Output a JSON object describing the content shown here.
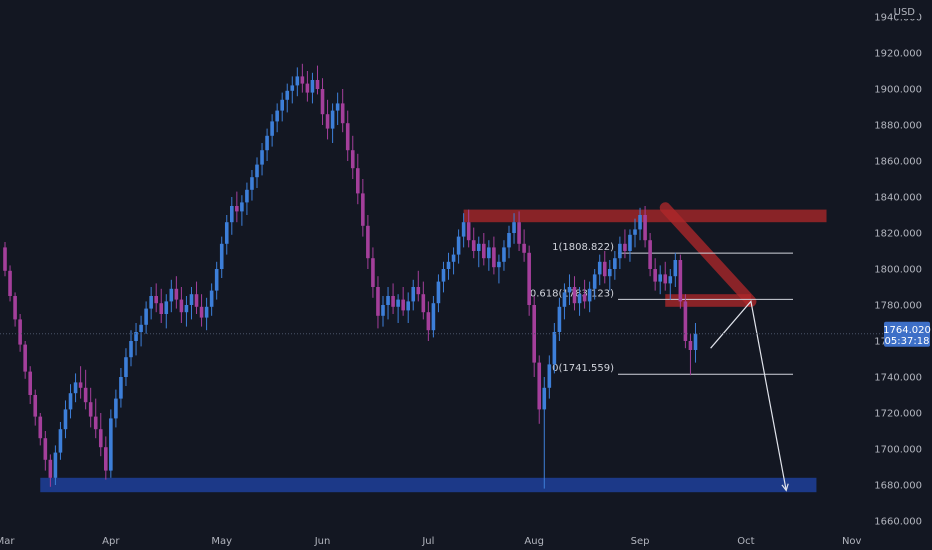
{
  "chart_data": {
    "type": "candlestick",
    "currency": "USD",
    "y_axis": {
      "ylim": [
        1655,
        1945
      ],
      "ticks": [
        1660,
        1680,
        1700,
        1720,
        1740,
        1760,
        1780,
        1800,
        1820,
        1840,
        1860,
        1880,
        1900,
        1920
      ],
      "tick_labels": [
        "1660.000",
        "1680.000",
        "1700.000",
        "1720.000",
        "1740.000",
        "1760.000",
        "1780.000",
        "1800.000",
        "1820.000",
        "1840.000",
        "1860.000",
        "1880.000",
        "1900.000",
        "1920.000"
      ],
      "top_partial_label": "1940.000"
    },
    "x_axis": {
      "labels": [
        "Mar",
        "Apr",
        "May",
        "Jun",
        "Jul",
        "Aug",
        "Sep",
        "Oct",
        "Nov"
      ],
      "label_bar_index": [
        0,
        21,
        43,
        63,
        84,
        105,
        126,
        147,
        168
      ],
      "total_bars": 175
    },
    "last_price": {
      "price": "1764.020",
      "countdown": "05:37:18",
      "value": 1764.02
    },
    "colors": {
      "background": "#131722",
      "bull": "#3d7fd9",
      "bear": "#a43f9b",
      "grid_text": "#b2b5be",
      "resistance_zone": "#b2282a",
      "support_zone": "#1f3f9a",
      "fib_line": "#d1d4dc",
      "price_tag": "#3d6fc7"
    },
    "fibonacci": [
      {
        "label": "1(1808.822)",
        "price": 1808.822
      },
      {
        "label": "0.618(1783.123)",
        "price": 1783.123
      },
      {
        "label": "0(1741.559)",
        "price": 1741.559
      }
    ],
    "zones": [
      {
        "name": "resistance",
        "from_bar": 91,
        "to_bar": 163,
        "low": 1826,
        "high": 1833
      },
      {
        "name": "retest",
        "from_bar": 131,
        "to_bar": 148,
        "low": 1779,
        "high": 1786
      },
      {
        "name": "support",
        "from_bar": 7,
        "to_bar": 161,
        "low": 1676,
        "high": 1684
      }
    ],
    "trendline": {
      "from": [
        131,
        1834
      ],
      "to": [
        148,
        1782
      ]
    },
    "projection": [
      [
        140,
        1756
      ],
      [
        148,
        1782
      ],
      [
        155,
        1677
      ]
    ],
    "candles": [
      [
        1812,
        1815,
        1796,
        1799
      ],
      [
        1799,
        1802,
        1782,
        1785
      ],
      [
        1785,
        1787,
        1768,
        1772
      ],
      [
        1772,
        1775,
        1754,
        1758
      ],
      [
        1758,
        1760,
        1739,
        1743
      ],
      [
        1743,
        1746,
        1725,
        1730
      ],
      [
        1730,
        1733,
        1713,
        1718
      ],
      [
        1718,
        1720,
        1702,
        1706
      ],
      [
        1706,
        1710,
        1688,
        1694
      ],
      [
        1694,
        1697,
        1679,
        1684
      ],
      [
        1684,
        1702,
        1680,
        1698
      ],
      [
        1698,
        1715,
        1694,
        1711
      ],
      [
        1711,
        1727,
        1706,
        1722
      ],
      [
        1722,
        1736,
        1717,
        1731
      ],
      [
        1731,
        1742,
        1726,
        1737
      ],
      [
        1737,
        1746,
        1728,
        1734
      ],
      [
        1734,
        1744,
        1722,
        1726
      ],
      [
        1726,
        1734,
        1712,
        1718
      ],
      [
        1718,
        1728,
        1706,
        1711
      ],
      [
        1711,
        1720,
        1696,
        1701
      ],
      [
        1701,
        1707,
        1683,
        1688
      ],
      [
        1688,
        1722,
        1684,
        1717
      ],
      [
        1717,
        1733,
        1712,
        1728
      ],
      [
        1728,
        1745,
        1723,
        1740
      ],
      [
        1740,
        1756,
        1735,
        1751
      ],
      [
        1751,
        1766,
        1746,
        1760
      ],
      [
        1760,
        1770,
        1752,
        1765
      ],
      [
        1765,
        1774,
        1757,
        1769
      ],
      [
        1769,
        1782,
        1764,
        1778
      ],
      [
        1778,
        1790,
        1772,
        1785
      ],
      [
        1785,
        1792,
        1776,
        1781
      ],
      [
        1781,
        1789,
        1770,
        1775
      ],
      [
        1775,
        1786,
        1767,
        1782
      ],
      [
        1782,
        1794,
        1776,
        1789
      ],
      [
        1789,
        1796,
        1778,
        1783
      ],
      [
        1783,
        1790,
        1770,
        1776
      ],
      [
        1776,
        1785,
        1768,
        1780
      ],
      [
        1780,
        1790,
        1772,
        1786
      ],
      [
        1786,
        1793,
        1775,
        1779
      ],
      [
        1779,
        1786,
        1768,
        1773
      ],
      [
        1773,
        1784,
        1766,
        1779
      ],
      [
        1779,
        1792,
        1774,
        1788
      ],
      [
        1788,
        1804,
        1783,
        1800
      ],
      [
        1800,
        1818,
        1795,
        1814
      ],
      [
        1814,
        1830,
        1808,
        1826
      ],
      [
        1826,
        1840,
        1819,
        1835
      ],
      [
        1835,
        1843,
        1826,
        1832
      ],
      [
        1832,
        1841,
        1824,
        1837
      ],
      [
        1837,
        1848,
        1830,
        1844
      ],
      [
        1844,
        1855,
        1838,
        1851
      ],
      [
        1851,
        1862,
        1845,
        1858
      ],
      [
        1858,
        1870,
        1852,
        1866
      ],
      [
        1866,
        1878,
        1860,
        1874
      ],
      [
        1874,
        1886,
        1868,
        1882
      ],
      [
        1882,
        1892,
        1876,
        1888
      ],
      [
        1888,
        1898,
        1882,
        1894
      ],
      [
        1894,
        1903,
        1887,
        1899
      ],
      [
        1899,
        1907,
        1892,
        1902
      ],
      [
        1902,
        1912,
        1896,
        1907
      ],
      [
        1907,
        1914,
        1898,
        1903
      ],
      [
        1903,
        1910,
        1893,
        1898
      ],
      [
        1898,
        1909,
        1892,
        1905
      ],
      [
        1905,
        1913,
        1897,
        1900
      ],
      [
        1900,
        1906,
        1880,
        1886
      ],
      [
        1886,
        1894,
        1872,
        1878
      ],
      [
        1878,
        1892,
        1870,
        1888
      ],
      [
        1888,
        1898,
        1880,
        1892
      ],
      [
        1892,
        1900,
        1876,
        1881
      ],
      [
        1881,
        1888,
        1860,
        1866
      ],
      [
        1866,
        1874,
        1850,
        1856
      ],
      [
        1856,
        1864,
        1836,
        1842
      ],
      [
        1842,
        1850,
        1818,
        1824
      ],
      [
        1824,
        1830,
        1800,
        1806
      ],
      [
        1806,
        1812,
        1784,
        1790
      ],
      [
        1790,
        1796,
        1767,
        1774
      ],
      [
        1774,
        1785,
        1768,
        1780
      ],
      [
        1780,
        1790,
        1772,
        1785
      ],
      [
        1785,
        1792,
        1775,
        1779
      ],
      [
        1779,
        1786,
        1770,
        1783
      ],
      [
        1783,
        1790,
        1774,
        1777
      ],
      [
        1777,
        1787,
        1770,
        1782
      ],
      [
        1782,
        1794,
        1777,
        1790
      ],
      [
        1790,
        1799,
        1782,
        1786
      ],
      [
        1786,
        1793,
        1772,
        1776
      ],
      [
        1776,
        1782,
        1760,
        1766
      ],
      [
        1766,
        1785,
        1762,
        1781
      ],
      [
        1781,
        1797,
        1776,
        1793
      ],
      [
        1793,
        1804,
        1787,
        1800
      ],
      [
        1800,
        1809,
        1794,
        1804
      ],
      [
        1804,
        1812,
        1797,
        1808
      ],
      [
        1808,
        1822,
        1803,
        1818
      ],
      [
        1818,
        1831,
        1812,
        1826
      ],
      [
        1826,
        1833,
        1812,
        1816
      ],
      [
        1816,
        1823,
        1806,
        1810
      ],
      [
        1810,
        1818,
        1801,
        1814
      ],
      [
        1814,
        1820,
        1802,
        1806
      ],
      [
        1806,
        1816,
        1799,
        1812
      ],
      [
        1812,
        1818,
        1797,
        1801
      ],
      [
        1801,
        1808,
        1792,
        1804
      ],
      [
        1804,
        1816,
        1799,
        1812
      ],
      [
        1812,
        1824,
        1806,
        1820
      ],
      [
        1820,
        1831,
        1814,
        1826
      ],
      [
        1826,
        1832,
        1810,
        1814
      ],
      [
        1814,
        1822,
        1804,
        1809
      ],
      [
        1809,
        1813,
        1774,
        1780
      ],
      [
        1780,
        1785,
        1740,
        1748
      ],
      [
        1748,
        1752,
        1714,
        1722
      ],
      [
        1722,
        1740,
        1678,
        1734
      ],
      [
        1734,
        1752,
        1728,
        1747
      ],
      [
        1747,
        1770,
        1742,
        1765
      ],
      [
        1765,
        1784,
        1760,
        1779
      ],
      [
        1779,
        1792,
        1772,
        1787
      ],
      [
        1787,
        1797,
        1780,
        1790
      ],
      [
        1790,
        1796,
        1777,
        1781
      ],
      [
        1781,
        1790,
        1774,
        1786
      ],
      [
        1786,
        1794,
        1778,
        1782
      ],
      [
        1782,
        1793,
        1776,
        1789
      ],
      [
        1789,
        1800,
        1783,
        1797
      ],
      [
        1797,
        1808,
        1791,
        1804
      ],
      [
        1804,
        1810,
        1792,
        1796
      ],
      [
        1796,
        1805,
        1788,
        1800
      ],
      [
        1800,
        1810,
        1794,
        1806
      ],
      [
        1806,
        1818,
        1800,
        1814
      ],
      [
        1814,
        1822,
        1806,
        1810
      ],
      [
        1810,
        1822,
        1804,
        1819
      ],
      [
        1819,
        1828,
        1812,
        1822
      ],
      [
        1822,
        1834,
        1816,
        1830
      ],
      [
        1830,
        1835,
        1812,
        1816
      ],
      [
        1816,
        1820,
        1796,
        1800
      ],
      [
        1800,
        1806,
        1788,
        1793
      ],
      [
        1793,
        1802,
        1786,
        1797
      ],
      [
        1797,
        1804,
        1788,
        1792
      ],
      [
        1792,
        1800,
        1783,
        1796
      ],
      [
        1796,
        1809,
        1790,
        1805
      ],
      [
        1805,
        1808,
        1778,
        1782
      ],
      [
        1782,
        1786,
        1756,
        1760
      ],
      [
        1760,
        1764,
        1741,
        1755
      ],
      [
        1755,
        1770,
        1748,
        1764
      ]
    ]
  }
}
